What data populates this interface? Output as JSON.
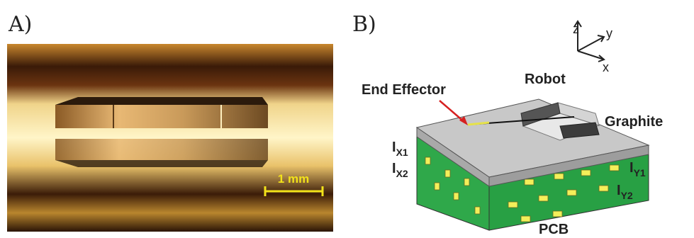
{
  "panel_a": {
    "label": "A)",
    "scale_bar": "1 mm"
  },
  "panel_b": {
    "label": "B)",
    "axes": {
      "z": "z",
      "y": "y",
      "x": "x"
    },
    "end_effector": "End Effector",
    "robot": "Robot",
    "graphite": "Graphite",
    "pcb": "PCB",
    "ix1": {
      "base": "I",
      "sub": "X1"
    },
    "ix2": {
      "base": "I",
      "sub": "X2"
    },
    "iy1": {
      "base": "I",
      "sub": "Y1"
    },
    "iy2": {
      "base": "I",
      "sub": "Y2"
    }
  }
}
